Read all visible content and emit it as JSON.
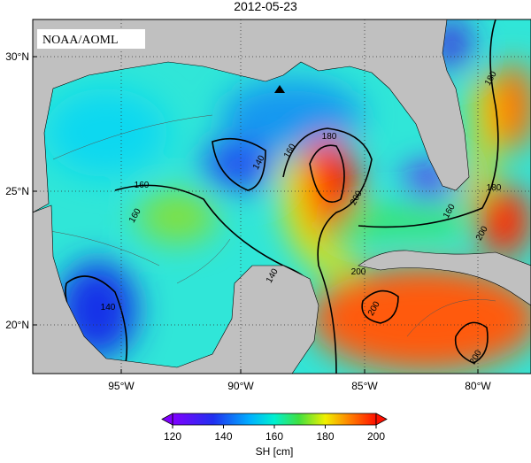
{
  "title": "2012-05-23",
  "credit": "NOAA/AOML",
  "lat_labels": [
    "30°N",
    "25°N",
    "20°N"
  ],
  "lon_labels": [
    "95°W",
    "90°W",
    "85°W",
    "80°W"
  ],
  "contour_labels": [
    "180",
    "160",
    "140",
    "160",
    "160",
    "140",
    "140",
    "200",
    "200",
    "180",
    "160",
    "200",
    "200",
    "200",
    "180"
  ],
  "colorbar": {
    "label": "SH [cm]",
    "ticks": [
      120,
      140,
      160,
      180,
      200
    ]
  }
}
